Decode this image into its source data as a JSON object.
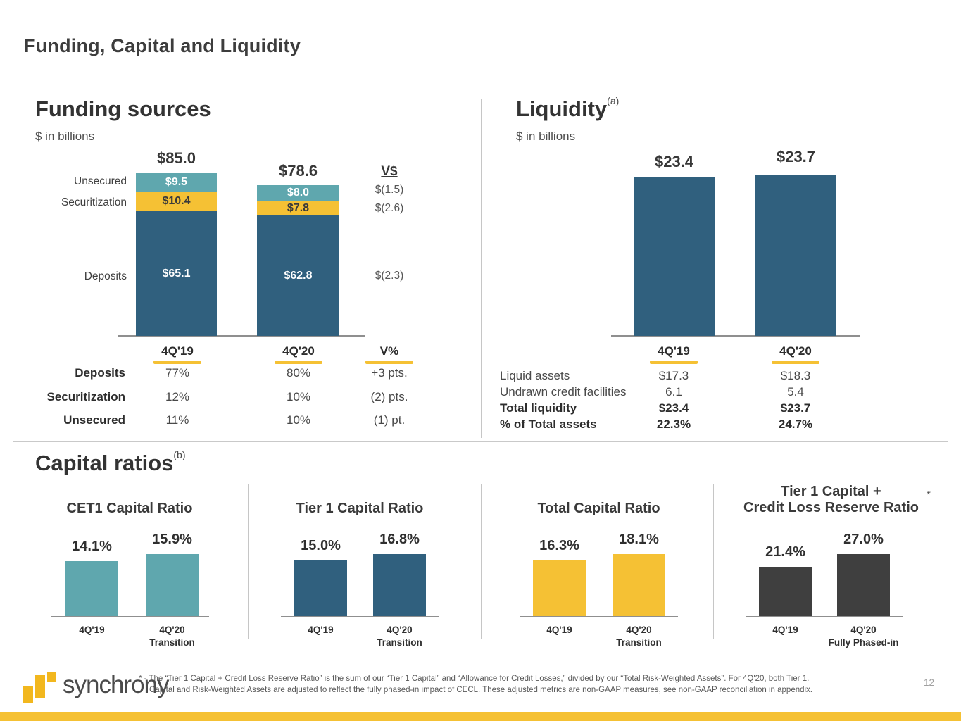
{
  "page": {
    "title": "Funding, Capital and Liquidity",
    "page_number": "12",
    "logo_text": "synchrony",
    "footnote_line1": "* - The “Tier 1 Capital + Credit Loss Reserve Ratio” is the sum of our “Tier 1 Capital” and “Allowance for Credit Losses,” divided by our “Total Risk-Weighted Assets”. For 4Q'20, both Tier 1.",
    "footnote_line2": "Capital and Risk-Weighted Assets are adjusted to reflect the fully phased-in impact of CECL. These adjusted metrics are non-GAAP measures, see non-GAAP reconciliation in appendix."
  },
  "sups": {
    "liquidity": "(a)",
    "capital": "(b)",
    "t1clr": "*"
  },
  "capital_heading": "Capital ratios",
  "colors": {
    "teal": "#5FA7AE",
    "yellow": "#F5C134",
    "blue": "#30607E",
    "charcoal": "#3F3F3F",
    "logo_gold": "#F2B71E"
  },
  "chart_data": [
    {
      "id": "funding-sources",
      "type": "bar",
      "stacked": true,
      "title": "Funding sources",
      "subtitle": "$ in billions",
      "categories": [
        "4Q'19",
        "4Q'20"
      ],
      "series": [
        {
          "name": "Deposits",
          "color": "blue",
          "values": [
            65.1,
            62.8
          ],
          "labels": [
            "$65.1",
            "$62.8"
          ]
        },
        {
          "name": "Securitization",
          "color": "yellow",
          "values": [
            10.4,
            7.8
          ],
          "labels": [
            "$10.4",
            "$7.8"
          ]
        },
        {
          "name": "Unsecured",
          "color": "teal",
          "values": [
            9.5,
            8.0
          ],
          "labels": [
            "$9.5",
            "$8.0"
          ]
        }
      ],
      "totals": [
        85.0,
        78.6
      ],
      "total_labels": [
        "$85.0",
        "$78.6"
      ],
      "side_labels": [
        "Unsecured",
        "Securitization",
        "Deposits"
      ],
      "variance_header": "V$",
      "variance_values": [
        "$(1.5)",
        "$(2.6)",
        "$(2.3)"
      ],
      "mix_table": {
        "headers": [
          "4Q'19",
          "4Q'20",
          "V%"
        ],
        "rows": [
          {
            "label": "Deposits",
            "c1": "77%",
            "c2": "80%",
            "c3": "+3 pts."
          },
          {
            "label": "Securitization",
            "c1": "12%",
            "c2": "10%",
            "c3": "(2) pts."
          },
          {
            "label": "Unsecured",
            "c1": "11%",
            "c2": "10%",
            "c3": "(1) pt."
          }
        ]
      }
    },
    {
      "id": "liquidity",
      "type": "bar",
      "title": "Liquidity",
      "subtitle": "$ in billions",
      "categories": [
        "4Q'19",
        "4Q'20"
      ],
      "values": [
        23.4,
        23.7
      ],
      "total_labels": [
        "$23.4",
        "$23.7"
      ],
      "table": {
        "headers": [
          "4Q'19",
          "4Q'20"
        ],
        "rows": [
          {
            "label": "Liquid assets",
            "c1": "$17.3",
            "c2": "$18.3",
            "bold": false
          },
          {
            "label": "Undrawn credit facilities",
            "c1": "6.1",
            "c2": "5.4",
            "bold": false
          },
          {
            "label": "Total liquidity",
            "c1": "$23.4",
            "c2": "$23.7",
            "bold": true
          },
          {
            "label": "% of Total assets",
            "c1": "22.3%",
            "c2": "24.7%",
            "bold": true
          }
        ]
      }
    },
    {
      "id": "cet1-capital-ratio",
      "type": "bar",
      "title": "CET1 Capital Ratio",
      "color": "teal",
      "categories": [
        "4Q'19",
        "4Q'20 Transition"
      ],
      "values": [
        14.1,
        15.9
      ],
      "value_labels": [
        "14.1%",
        "15.9%"
      ],
      "x_labels": [
        [
          "4Q'19"
        ],
        [
          "4Q'20",
          "Transition"
        ]
      ]
    },
    {
      "id": "tier1-capital-ratio",
      "type": "bar",
      "title": "Tier 1 Capital Ratio",
      "color": "blue",
      "categories": [
        "4Q'19",
        "4Q'20 Transition"
      ],
      "values": [
        15.0,
        16.8
      ],
      "value_labels": [
        "15.0%",
        "16.8%"
      ],
      "x_labels": [
        [
          "4Q'19"
        ],
        [
          "4Q'20",
          "Transition"
        ]
      ]
    },
    {
      "id": "total-capital-ratio",
      "type": "bar",
      "title": "Total Capital Ratio",
      "color": "yellow",
      "categories": [
        "4Q'19",
        "4Q'20 Transition"
      ],
      "values": [
        16.3,
        18.1
      ],
      "value_labels": [
        "16.3%",
        "18.1%"
      ],
      "x_labels": [
        [
          "4Q'19"
        ],
        [
          "4Q'20",
          "Transition"
        ]
      ]
    },
    {
      "id": "tier1-plus-credit-loss-reserve-ratio",
      "type": "bar",
      "title": "Tier 1 Capital + Credit Loss Reserve Ratio",
      "title_lines": [
        "Tier 1 Capital +",
        "Credit Loss Reserve Ratio"
      ],
      "color": "charcoal",
      "categories": [
        "4Q'19",
        "4Q'20 Fully Phased-in"
      ],
      "values": [
        21.4,
        27.0
      ],
      "value_labels": [
        "21.4%",
        "27.0%"
      ],
      "x_labels": [
        [
          "4Q'19"
        ],
        [
          "4Q'20",
          "Fully Phased-in"
        ]
      ]
    }
  ]
}
